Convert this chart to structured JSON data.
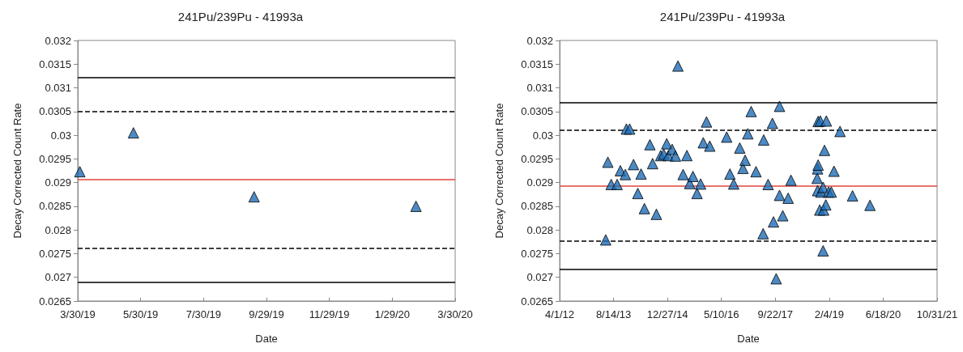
{
  "chart_data": [
    {
      "type": "scatter",
      "title": "241Pu/239Pu - 41993a",
      "xlabel": "Date",
      "ylabel": "Decay Corrected Count Rate",
      "marker": "triangle",
      "grid": false,
      "xlim": [
        "2019-03-30",
        "2020-03-30"
      ],
      "xticks": [
        {
          "value": "2019-03-30",
          "label": "3/30/19"
        },
        {
          "value": "2019-05-30",
          "label": "5/30/19"
        },
        {
          "value": "2019-07-30",
          "label": "7/30/19"
        },
        {
          "value": "2019-09-29",
          "label": "9/29/19"
        },
        {
          "value": "2019-11-29",
          "label": "11/29/19"
        },
        {
          "value": "2020-01-29",
          "label": "1/29/20"
        },
        {
          "value": "2020-03-30",
          "label": "3/30/20"
        }
      ],
      "ylim": [
        0.0265,
        0.032
      ],
      "yticks": [
        0.0265,
        0.027,
        0.0275,
        0.028,
        0.0285,
        0.029,
        0.0295,
        0.03,
        0.0305,
        0.031,
        0.0315,
        0.032
      ],
      "series": [
        {
          "color": "#1f6db5",
          "x": [
            "2019-04-01",
            "2019-05-23",
            "2019-09-17",
            "2020-02-21"
          ],
          "values": [
            0.02923,
            0.03005,
            0.0287,
            0.0285
          ]
        }
      ],
      "ref_lines": [
        {
          "axis": "y",
          "value": 0.03122,
          "color": "#000000",
          "line_style": "solid"
        },
        {
          "axis": "y",
          "value": 0.0305,
          "color": "#000000",
          "line_style": "dashed"
        },
        {
          "axis": "y",
          "value": 0.02906,
          "color": "#e0443a",
          "line_style": "solid"
        },
        {
          "axis": "y",
          "value": 0.02761,
          "color": "#000000",
          "line_style": "dashed"
        },
        {
          "axis": "y",
          "value": 0.0269,
          "color": "#000000",
          "line_style": "solid"
        }
      ]
    },
    {
      "type": "scatter",
      "title": "241Pu/239Pu - 41993a",
      "xlabel": "Date",
      "ylabel": "Decay Corrected Count Rate",
      "marker": "triangle",
      "grid": false,
      "xlim": [
        "2012-04-01",
        "2021-10-31"
      ],
      "xticks": [
        {
          "value": "2012-04-01",
          "label": "4/1/12"
        },
        {
          "value": "2013-08-14",
          "label": "8/14/13"
        },
        {
          "value": "2014-12-27",
          "label": "12/27/14"
        },
        {
          "value": "2016-05-10",
          "label": "5/10/16"
        },
        {
          "value": "2017-09-22",
          "label": "9/22/17"
        },
        {
          "value": "2019-02-04",
          "label": "2/4/19"
        },
        {
          "value": "2020-06-18",
          "label": "6/18/20"
        },
        {
          "value": "2021-10-31",
          "label": "10/31/21"
        }
      ],
      "ylim": [
        0.0265,
        0.032
      ],
      "yticks": [
        0.0265,
        0.027,
        0.0275,
        0.028,
        0.0285,
        0.029,
        0.0295,
        0.03,
        0.0305,
        0.031,
        0.0315,
        0.032
      ],
      "series": [
        {
          "color": "#1f6db5",
          "x": [
            "2013-06-02",
            "2013-06-22",
            "2013-07-23",
            "2013-09-16",
            "2013-10-16",
            "2013-12-01",
            "2013-12-11",
            "2014-01-10",
            "2014-02-15",
            "2014-03-27",
            "2014-04-26",
            "2014-05-27",
            "2014-07-17",
            "2014-08-11",
            "2014-09-15",
            "2014-10-25",
            "2014-11-22",
            "2014-12-20",
            "2015-01-04",
            "2015-02-08",
            "2015-03-11",
            "2015-04-03",
            "2015-05-21",
            "2015-06-25",
            "2015-07-21",
            "2015-08-20",
            "2015-09-27",
            "2015-10-30",
            "2015-11-24",
            "2015-12-24",
            "2016-01-23",
            "2016-06-28",
            "2016-07-28",
            "2016-09-01",
            "2016-10-27",
            "2016-11-26",
            "2016-12-16",
            "2017-01-10",
            "2017-02-10",
            "2017-03-27",
            "2017-06-01",
            "2017-06-06",
            "2017-07-17",
            "2017-08-26",
            "2017-09-05",
            "2017-09-30",
            "2017-10-31",
            "2017-10-31",
            "2017-11-30",
            "2018-01-19",
            "2018-02-14",
            "2018-10-15",
            "2018-10-19",
            "2018-10-24",
            "2018-10-24",
            "2018-11-13",
            "2018-10-19",
            "2018-11-18",
            "2018-11-08",
            "2018-12-14",
            "2018-12-09",
            "2018-12-09",
            "2018-12-22",
            "2019-01-08",
            "2019-01-03",
            "2019-01-29",
            "2019-02-23",
            "2019-03-20",
            "2019-05-15",
            "2019-09-08",
            "2020-02-17"
          ],
          "values": [
            0.02779,
            0.02943,
            0.02896,
            0.02896,
            0.02925,
            0.02917,
            0.03013,
            0.03013,
            0.02938,
            0.02877,
            0.02918,
            0.02845,
            0.0298,
            0.0294,
            0.02833,
            0.02957,
            0.0296,
            0.02982,
            0.02957,
            0.0297,
            0.02956,
            0.03146,
            0.02917,
            0.02957,
            0.02898,
            0.02913,
            0.02877,
            0.02897,
            0.02984,
            0.03028,
            0.02977,
            0.02996,
            0.02918,
            0.02897,
            0.02973,
            0.0293,
            0.02947,
            0.03003,
            0.0305,
            0.02923,
            0.02792,
            0.0299,
            0.02896,
            0.03025,
            0.02817,
            0.02697,
            0.03061,
            0.02873,
            0.0283,
            0.02867,
            0.02905,
            0.02909,
            0.02929,
            0.02937,
            0.03029,
            0.0303,
            0.02883,
            0.0288,
            0.02842,
            0.02842,
            0.0289,
            0.02756,
            0.02968,
            0.0303,
            0.02853,
            0.0288,
            0.0288,
            0.02924,
            0.03008,
            0.02872,
            0.02852
          ]
        }
      ],
      "ref_lines": [
        {
          "axis": "y",
          "value": 0.03069,
          "color": "#000000",
          "line_style": "solid"
        },
        {
          "axis": "y",
          "value": 0.0301,
          "color": "#000000",
          "line_style": "dashed"
        },
        {
          "axis": "y",
          "value": 0.02893,
          "color": "#e0443a",
          "line_style": "solid"
        },
        {
          "axis": "y",
          "value": 0.02776,
          "color": "#000000",
          "line_style": "dashed"
        },
        {
          "axis": "y",
          "value": 0.02717,
          "color": "#000000",
          "line_style": "solid"
        }
      ]
    }
  ]
}
